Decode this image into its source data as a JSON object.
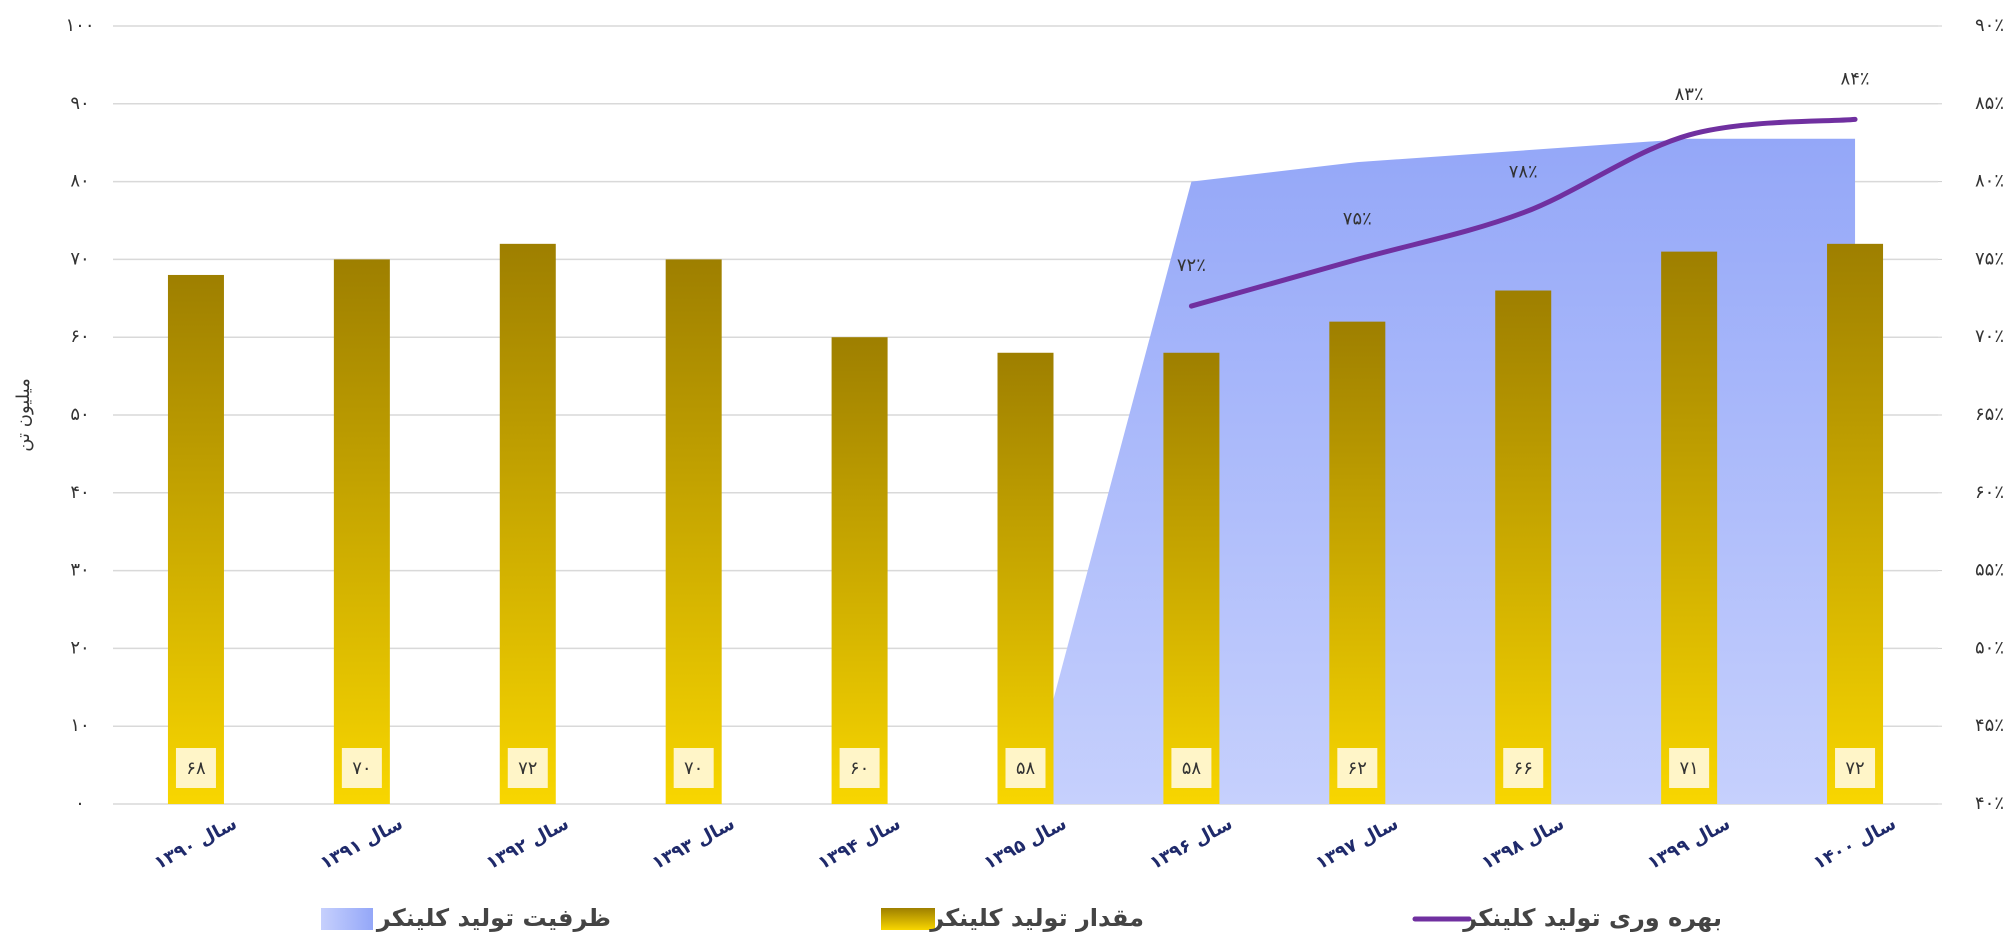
{
  "chart_data": {
    "type": "bar",
    "y_label": "میلیون تن",
    "categories": [
      "سال ۱۳۹۰",
      "سال ۱۳۹۱",
      "سال ۱۳۹۲",
      "سال ۱۳۹۳",
      "سال ۱۳۹۴",
      "سال ۱۳۹۵",
      "سال ۱۳۹۶",
      "سال ۱۳۹۷",
      "سال ۱۳۹۸",
      "سال ۱۳۹۹",
      "سال ۱۴۰۰"
    ],
    "series": [
      {
        "name": "ظرفیت  تولید کلینکر",
        "type": "area",
        "color": "#96a8f8",
        "values": [
          null,
          null,
          null,
          null,
          null,
          0,
          80,
          82.5,
          84,
          85.5,
          85.5
        ]
      },
      {
        "name": "مقدار تولید کلینکر",
        "type": "bar",
        "color": "#c9a200",
        "values": [
          68,
          70,
          72,
          70,
          60,
          58,
          58,
          62,
          66,
          71,
          72
        ],
        "value_labels": [
          "۶۸",
          "۷۰",
          "۷۲",
          "۷۰",
          "۶۰",
          "۵۸",
          "۵۸",
          "۶۲",
          "۶۶",
          "۷۱",
          "۷۲"
        ]
      },
      {
        "name": "بهره وری تولید کلینکر",
        "type": "line",
        "axis": "y2",
        "color": "#7030a0",
        "values": [
          null,
          null,
          null,
          null,
          null,
          null,
          72,
          75,
          78,
          83,
          84
        ],
        "value_labels": [
          null,
          null,
          null,
          null,
          null,
          null,
          "۷۲٪",
          "۷۵٪",
          "۷۸٪",
          "۸۳٪",
          "۸۴٪"
        ]
      }
    ],
    "ylim": [
      0,
      100
    ],
    "yticks": [
      {
        "value": 0,
        "label": "۰"
      },
      {
        "value": 10,
        "label": "۱۰"
      },
      {
        "value": 20,
        "label": "۲۰"
      },
      {
        "value": 30,
        "label": "۳۰"
      },
      {
        "value": 40,
        "label": "۴۰"
      },
      {
        "value": 50,
        "label": "۵۰"
      },
      {
        "value": 60,
        "label": "۶۰"
      },
      {
        "value": 70,
        "label": "۷۰"
      },
      {
        "value": 80,
        "label": "۸۰"
      },
      {
        "value": 90,
        "label": "۹۰"
      },
      {
        "value": 100,
        "label": "۱۰۰"
      }
    ],
    "y2lim": [
      40,
      90
    ],
    "y2ticks": [
      {
        "value": 40,
        "label": "۴۰٪"
      },
      {
        "value": 45,
        "label": "۴۵٪"
      },
      {
        "value": 50,
        "label": "۵۰٪"
      },
      {
        "value": 55,
        "label": "۵۵٪"
      },
      {
        "value": 60,
        "label": "۶۰٪"
      },
      {
        "value": 65,
        "label": "۶۵٪"
      },
      {
        "value": 70,
        "label": "۷۰٪"
      },
      {
        "value": 75,
        "label": "۷۵٪"
      },
      {
        "value": 80,
        "label": "۸۰٪"
      },
      {
        "value": 85,
        "label": "۸۵٪"
      },
      {
        "value": 90,
        "label": "۹۰٪"
      }
    ],
    "grid": true
  }
}
